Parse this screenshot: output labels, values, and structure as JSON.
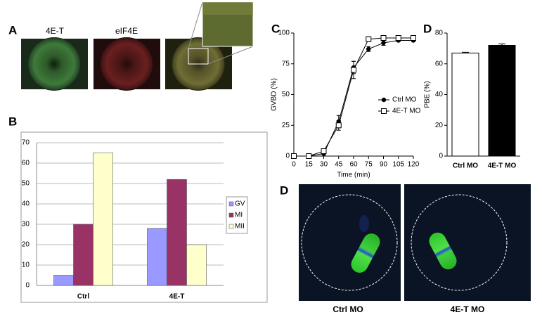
{
  "panel_letters": [
    "A",
    "B",
    "C",
    "D",
    "D"
  ],
  "image_labels": {
    "panel_a": [
      "4E-T",
      "eIF4E"
    ],
    "panel_d": [
      "Ctrl MO",
      "4E-T MO"
    ]
  },
  "chart_data": [
    {
      "type": "bar",
      "categories": [
        "Ctrl",
        "4E-T"
      ],
      "series": [
        {
          "name": "GV",
          "color": "#9999ff",
          "values": [
            5,
            28
          ]
        },
        {
          "name": "MI",
          "color": "#993366",
          "values": [
            30,
            52
          ]
        },
        {
          "name": "MII",
          "color": "#ffffcc",
          "values": [
            65,
            20
          ]
        }
      ],
      "ylim": [
        0,
        70
      ],
      "yticks": [
        0,
        10,
        20,
        30,
        40,
        50,
        60,
        70
      ],
      "grid": true,
      "legend": "right"
    },
    {
      "type": "line",
      "x": [
        0,
        15,
        30,
        45,
        60,
        75,
        90,
        105,
        120
      ],
      "xlim": [
        0,
        120
      ],
      "xticks": [
        0,
        15,
        30,
        45,
        60,
        75,
        90,
        105,
        120
      ],
      "ylim": [
        0,
        100
      ],
      "yticks": [
        0,
        25,
        50,
        75,
        100
      ],
      "xlabel": "Time (min)",
      "ylabel": "GVBD (%)",
      "legend": "right",
      "series": [
        {
          "name": "Ctrl MO",
          "marker": "circle",
          "color": "#000000",
          "values": [
            0,
            0,
            2,
            28,
            72,
            87,
            92,
            94,
            94
          ],
          "errors": [
            0,
            0,
            1,
            5,
            5,
            2,
            2,
            1,
            1
          ]
        },
        {
          "name": "4E-T MO",
          "marker": "square",
          "color": "#000000",
          "values": [
            0,
            0,
            4,
            25,
            70,
            95,
            96,
            96,
            96
          ],
          "errors": [
            0,
            0,
            2,
            4,
            7,
            2,
            1,
            1,
            1
          ]
        }
      ]
    },
    {
      "type": "bar",
      "categories": [
        "Ctrl MO",
        "4E-T MO"
      ],
      "values": [
        67,
        72
      ],
      "errors": [
        0.5,
        1
      ],
      "colors": [
        "#ffffff",
        "#000000"
      ],
      "ylim": [
        0,
        80
      ],
      "yticks": [
        0,
        20,
        40,
        60,
        80
      ],
      "ylabel": "PBE (%)"
    }
  ]
}
